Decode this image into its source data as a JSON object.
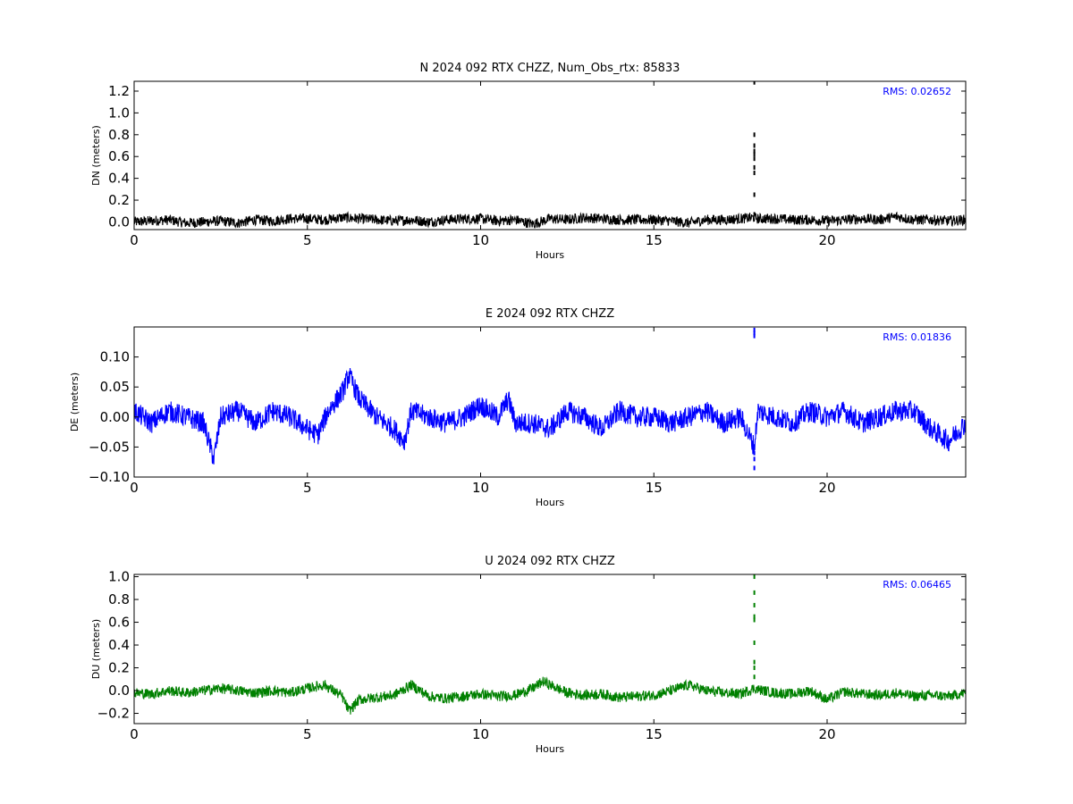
{
  "chart_data": [
    {
      "type": "line",
      "title": "N 2024 092 RTX  CHZZ, Num_Obs_rtx: 85833",
      "xlabel": "Hours",
      "ylabel": "DN (meters)",
      "xlim": [
        0,
        24
      ],
      "ylim": [
        -0.07,
        1.29
      ],
      "xticks": [
        0,
        5,
        10,
        15,
        20
      ],
      "yticks": [
        0.0,
        0.2,
        0.4,
        0.6,
        0.8,
        1.0,
        1.2
      ],
      "yticklabels": [
        "0.0",
        "0.2",
        "0.4",
        "0.6",
        "0.8",
        "1.0",
        "1.2"
      ],
      "color": "#000000",
      "rms": "RMS:  0.02652",
      "rms_color": "#0000ff",
      "series": [
        {
          "x": [
            0,
            0.5,
            1,
            1.5,
            2,
            2.5,
            3,
            3.5,
            4,
            4.5,
            5,
            5.5,
            6,
            6.5,
            7,
            7.5,
            8,
            8.5,
            9,
            9.5,
            10,
            10.5,
            11,
            11.5,
            12,
            12.5,
            13,
            13.5,
            14,
            14.5,
            15,
            15.5,
            16,
            16.5,
            17,
            17.5,
            17.9,
            18,
            18.5,
            19,
            19.5,
            20,
            20.5,
            21,
            21.5,
            22,
            22.5,
            23,
            23.5,
            24
          ],
          "y": [
            0.0,
            0.01,
            0.02,
            -0.01,
            0.0,
            0.01,
            -0.01,
            0.02,
            0.01,
            0.03,
            0.03,
            0.02,
            0.04,
            0.03,
            0.02,
            0.01,
            0.02,
            0.0,
            0.02,
            0.03,
            0.03,
            0.01,
            0.02,
            -0.02,
            0.03,
            0.02,
            0.04,
            0.03,
            0.02,
            0.02,
            0.02,
            0.01,
            -0.01,
            0.02,
            0.02,
            0.03,
            0.04,
            0.03,
            0.03,
            0.02,
            0.02,
            0.01,
            0.02,
            0.03,
            0.02,
            0.05,
            0.02,
            0.02,
            0.01,
            0.02
          ]
        }
      ],
      "spikes": [
        {
          "x": 17.9,
          "y": [
            1.28,
            0.8,
            0.7,
            0.65,
            0.62,
            0.58,
            0.5,
            0.45,
            0.25,
            0.07
          ]
        }
      ]
    },
    {
      "type": "line",
      "title": "E 2024 092 RTX  CHZZ",
      "xlabel": "Hours",
      "ylabel": "DE (meters)",
      "xlim": [
        0,
        24
      ],
      "ylim": [
        -0.1,
        0.15
      ],
      "xticks": [
        0,
        5,
        10,
        15,
        20
      ],
      "yticks": [
        -0.1,
        -0.05,
        0.0,
        0.05,
        0.1
      ],
      "yticklabels": [
        "−0.10",
        "−0.05",
        "0.00",
        "0.05",
        "0.10"
      ],
      "color": "#0000ff",
      "rms": "RMS:  0.01836",
      "rms_color": "#0000ff",
      "series": [
        {
          "x": [
            0,
            0.5,
            1,
            1.5,
            2,
            2.3,
            2.5,
            3,
            3.5,
            4,
            4.5,
            5,
            5.3,
            5.6,
            6,
            6.2,
            6.5,
            7,
            7.5,
            7.8,
            8,
            8.5,
            9,
            9.5,
            10,
            10.5,
            10.8,
            11,
            11.5,
            12,
            12.5,
            13,
            13.5,
            14,
            14.5,
            15,
            15.5,
            16,
            16.5,
            17,
            17.5,
            17.9,
            18,
            18.5,
            19,
            19.5,
            20,
            20.5,
            21,
            21.5,
            22,
            22.5,
            23,
            23.5,
            24
          ],
          "y": [
            0.01,
            -0.01,
            0.01,
            0.0,
            -0.01,
            -0.07,
            0.0,
            0.01,
            -0.01,
            0.01,
            0.0,
            -0.02,
            -0.03,
            0.01,
            0.04,
            0.07,
            0.03,
            0.0,
            -0.02,
            -0.04,
            0.01,
            0.0,
            -0.01,
            0.0,
            0.02,
            0.0,
            0.03,
            -0.01,
            -0.01,
            -0.02,
            0.01,
            0.0,
            -0.02,
            0.01,
            0.0,
            0.0,
            -0.01,
            0.0,
            0.01,
            -0.01,
            0.0,
            -0.05,
            0.01,
            0.0,
            -0.01,
            0.01,
            0.0,
            0.01,
            -0.01,
            0.0,
            0.01,
            0.01,
            -0.02,
            -0.04,
            -0.01
          ]
        }
      ],
      "spikes": [
        {
          "x": 17.9,
          "y": [
            0.145,
            0.14,
            0.135,
            -0.06,
            -0.07,
            -0.085
          ]
        }
      ]
    },
    {
      "type": "line",
      "title": "U 2024 092 RTX  CHZZ",
      "xlabel": "Hours",
      "ylabel": "DU (meters)",
      "xlim": [
        0,
        24
      ],
      "ylim": [
        -0.29,
        1.02
      ],
      "xticks": [
        0,
        5,
        10,
        15,
        20
      ],
      "yticks": [
        -0.2,
        0.0,
        0.2,
        0.4,
        0.6,
        0.8,
        1.0
      ],
      "yticklabels": [
        "−0.2",
        "0.0",
        "0.2",
        "0.4",
        "0.6",
        "0.8",
        "1.0"
      ],
      "color": "#008000",
      "rms": "RMS:  0.06465",
      "rms_color": "#0000ff",
      "series": [
        {
          "x": [
            0,
            0.5,
            1,
            1.5,
            2,
            2.5,
            3,
            3.5,
            4,
            4.5,
            5,
            5.5,
            6,
            6.2,
            6.5,
            7,
            7.5,
            8,
            8.5,
            9,
            9.5,
            10,
            10.5,
            11,
            11.5,
            11.8,
            12,
            12.5,
            13,
            13.5,
            14,
            14.5,
            15,
            15.5,
            16,
            16.5,
            17,
            17.5,
            17.9,
            18,
            18.5,
            19,
            19.5,
            20,
            20.5,
            21,
            21.5,
            22,
            22.5,
            23,
            23.5,
            24
          ],
          "y": [
            -0.02,
            -0.03,
            0.0,
            -0.02,
            0.0,
            0.02,
            0.0,
            -0.02,
            0.0,
            -0.02,
            0.02,
            0.05,
            -0.05,
            -0.18,
            -0.08,
            -0.06,
            -0.04,
            0.05,
            -0.05,
            -0.07,
            -0.05,
            -0.03,
            -0.05,
            -0.04,
            0.02,
            0.08,
            0.05,
            -0.02,
            -0.04,
            -0.03,
            -0.06,
            -0.05,
            -0.04,
            0.0,
            0.05,
            0.0,
            -0.02,
            -0.03,
            0.02,
            0.01,
            -0.02,
            -0.03,
            0.0,
            -0.08,
            -0.01,
            -0.03,
            -0.04,
            -0.02,
            -0.05,
            -0.04,
            -0.05,
            -0.02
          ]
        }
      ],
      "spikes": [
        {
          "x": 17.9,
          "y": [
            1.0,
            0.86,
            0.75,
            0.65,
            0.62,
            0.42,
            0.25,
            0.2,
            0.12
          ]
        }
      ]
    }
  ]
}
